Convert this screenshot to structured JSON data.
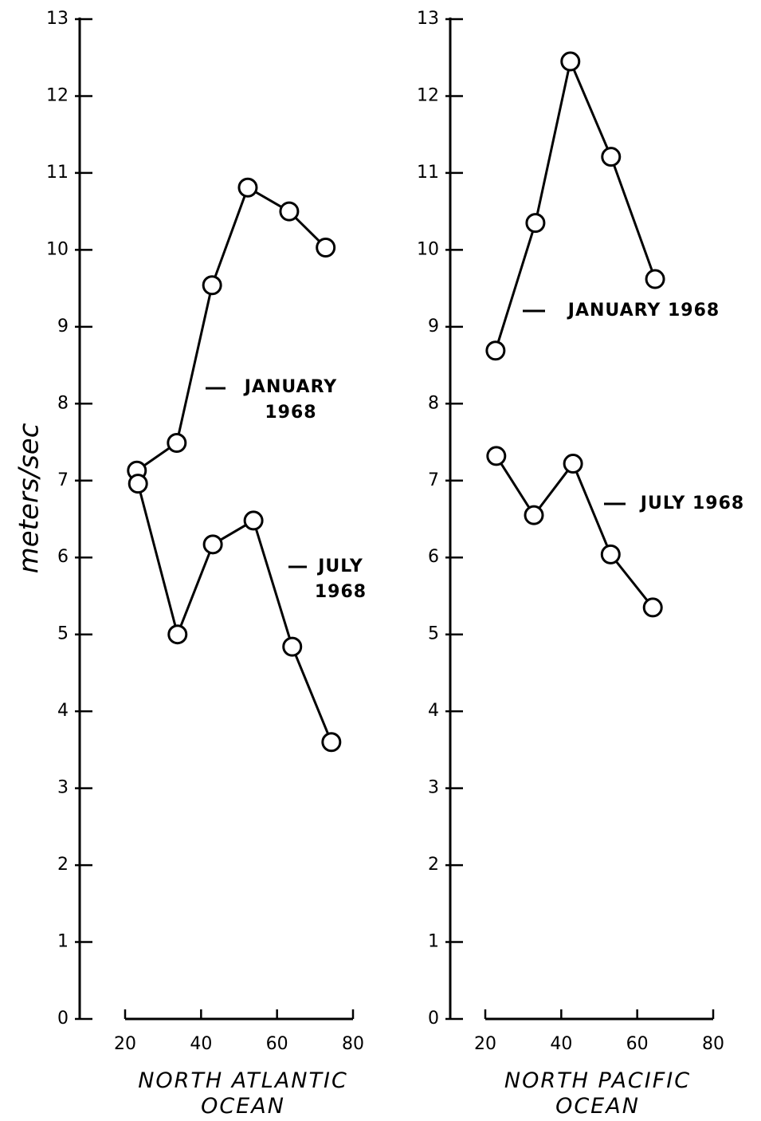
{
  "chart_data": [
    {
      "type": "line",
      "ylabel": "meters/sec",
      "xlabel": "NORTH ATLANTIC OCEAN",
      "xlim": [
        20,
        80
      ],
      "xticks": [
        20,
        40,
        60,
        80
      ],
      "ylim": [
        0,
        13
      ],
      "yticks": [
        0,
        1,
        2,
        3,
        4,
        5,
        6,
        7,
        8,
        9,
        10,
        11,
        12,
        13
      ],
      "series": [
        {
          "name": "JANUARY 1968",
          "color": "#000000",
          "x": [
            23.1,
            33.6,
            42.9,
            52.3,
            63.2,
            72.8
          ],
          "values": [
            7.13,
            7.49,
            9.54,
            10.81,
            10.5,
            10.03
          ]
        },
        {
          "name": "JULY 1968",
          "color": "#000000",
          "x": [
            23.4,
            33.8,
            43.1,
            53.8,
            64.0,
            74.3
          ],
          "values": [
            6.96,
            5.0,
            6.17,
            6.48,
            4.84,
            3.6
          ]
        }
      ]
    },
    {
      "type": "line",
      "xlabel": "NORTH PACIFIC OCEAN",
      "xlim": [
        20,
        80
      ],
      "xticks": [
        20,
        40,
        60,
        80
      ],
      "ylim": [
        0,
        13
      ],
      "yticks": [
        0,
        1,
        2,
        3,
        4,
        5,
        6,
        7,
        8,
        9,
        10,
        11,
        12,
        13
      ],
      "series": [
        {
          "name": "JANUARY 1968",
          "color": "#000000",
          "x": [
            22.7,
            33.2,
            42.4,
            53.1,
            64.7
          ],
          "values": [
            8.69,
            10.35,
            12.45,
            11.21,
            9.62
          ]
        },
        {
          "name": "JULY 1968",
          "color": "#000000",
          "x": [
            22.9,
            32.8,
            43.1,
            53.0,
            64.1
          ],
          "values": [
            7.32,
            6.55,
            7.22,
            6.04,
            5.35
          ]
        }
      ]
    }
  ]
}
